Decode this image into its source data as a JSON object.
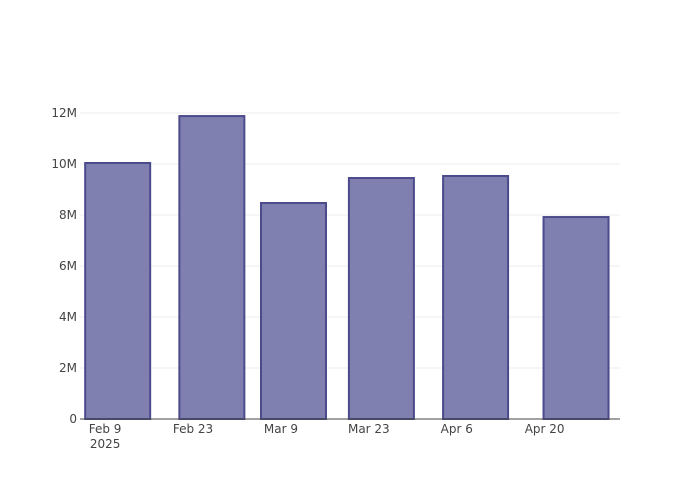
{
  "chart_data": {
    "type": "bar",
    "x": [
      "2025-02-11",
      "2025-02-26",
      "2025-03-11",
      "2025-03-25",
      "2025-04-09",
      "2025-04-25"
    ],
    "values": [
      10040000,
      11880000,
      8470000,
      9450000,
      9530000,
      7920000
    ],
    "color": "#7f7fb0",
    "edge_color": "#4b4b8c",
    "xlim": [
      "2025-02-05",
      "2025-05-02"
    ],
    "xticks": [
      {
        "value": "2025-02-09",
        "label": "Feb 9\n2025"
      },
      {
        "value": "2025-02-23",
        "label": "Feb 23"
      },
      {
        "value": "2025-03-09",
        "label": "Mar 9"
      },
      {
        "value": "2025-03-23",
        "label": "Mar 23"
      },
      {
        "value": "2025-04-06",
        "label": "Apr 6"
      },
      {
        "value": "2025-04-20",
        "label": "Apr 20"
      }
    ],
    "ylim": [
      0,
      12000000
    ],
    "yticks": [
      0,
      {
        "value": 2000000,
        "label": "2M"
      },
      {
        "value": 4000000,
        "label": "4M"
      },
      {
        "value": 6000000,
        "label": "6M"
      },
      {
        "value": 8000000,
        "label": "8M"
      },
      {
        "value": 10000000,
        "label": "10M"
      },
      {
        "value": 12000000,
        "label": "12M"
      }
    ],
    "grid": true
  }
}
